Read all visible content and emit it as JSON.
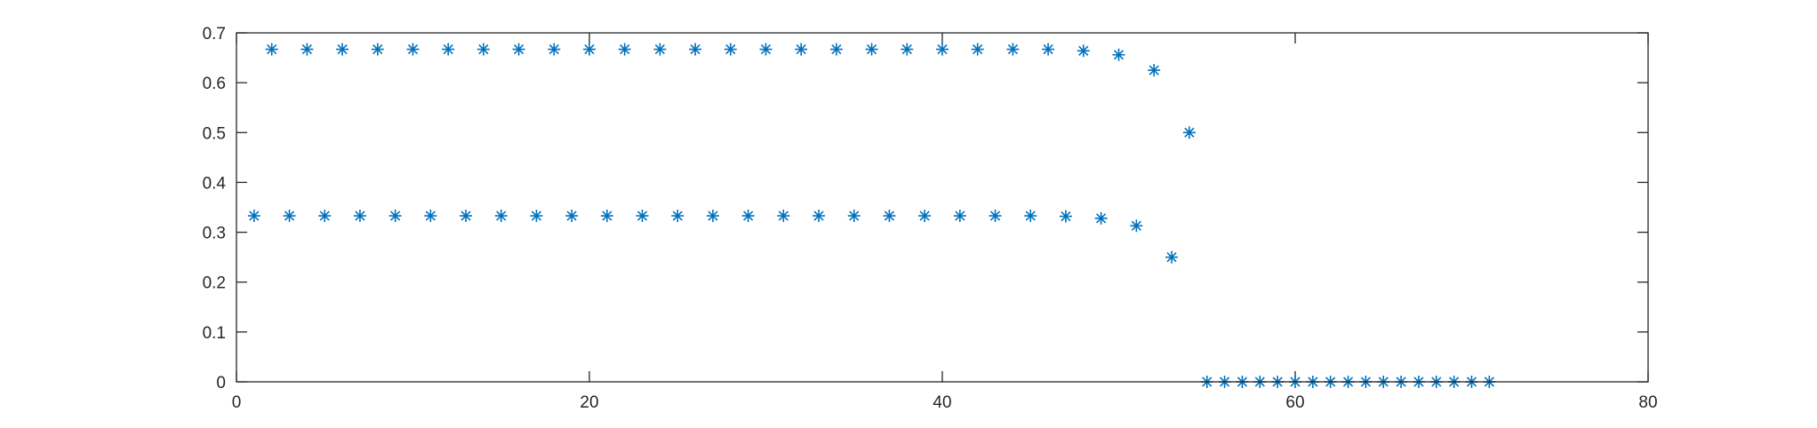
{
  "chart_data": {
    "type": "scatter",
    "title": "",
    "xlabel": "",
    "ylabel": "",
    "xlim": [
      0,
      80
    ],
    "ylim": [
      0,
      0.7
    ],
    "grid": false,
    "marker": "asterisk",
    "marker_color": "#0072BD",
    "xticks": [
      "0",
      "20",
      "40",
      "60",
      "80"
    ],
    "yticks": [
      "0",
      "0.1",
      "0.2",
      "0.3",
      "0.4",
      "0.5",
      "0.6",
      "0.7"
    ],
    "x": [
      1,
      2,
      3,
      4,
      5,
      6,
      7,
      8,
      9,
      10,
      11,
      12,
      13,
      14,
      15,
      16,
      17,
      18,
      19,
      20,
      21,
      22,
      23,
      24,
      25,
      26,
      27,
      28,
      29,
      30,
      31,
      32,
      33,
      34,
      35,
      36,
      37,
      38,
      39,
      40,
      41,
      42,
      43,
      44,
      45,
      46,
      47,
      48,
      49,
      50,
      51,
      52,
      53,
      54,
      55,
      56,
      57,
      58,
      59,
      60,
      61,
      62,
      63,
      64,
      65,
      66,
      67,
      68,
      69,
      70,
      71
    ],
    "y": [
      0.333,
      0.667,
      0.333,
      0.667,
      0.333,
      0.667,
      0.333,
      0.667,
      0.333,
      0.667,
      0.333,
      0.667,
      0.333,
      0.667,
      0.333,
      0.667,
      0.333,
      0.667,
      0.333,
      0.667,
      0.333,
      0.667,
      0.333,
      0.667,
      0.333,
      0.667,
      0.333,
      0.667,
      0.333,
      0.667,
      0.333,
      0.667,
      0.333,
      0.667,
      0.333,
      0.667,
      0.333,
      0.667,
      0.333,
      0.667,
      0.333,
      0.667,
      0.333,
      0.667,
      0.333,
      0.667,
      0.332,
      0.664,
      0.328,
      0.656,
      0.313,
      0.625,
      0.25,
      0.5,
      0,
      0,
      0,
      0,
      0,
      0,
      0,
      0,
      0,
      0,
      0,
      0,
      0,
      0,
      0,
      0,
      0
    ]
  }
}
